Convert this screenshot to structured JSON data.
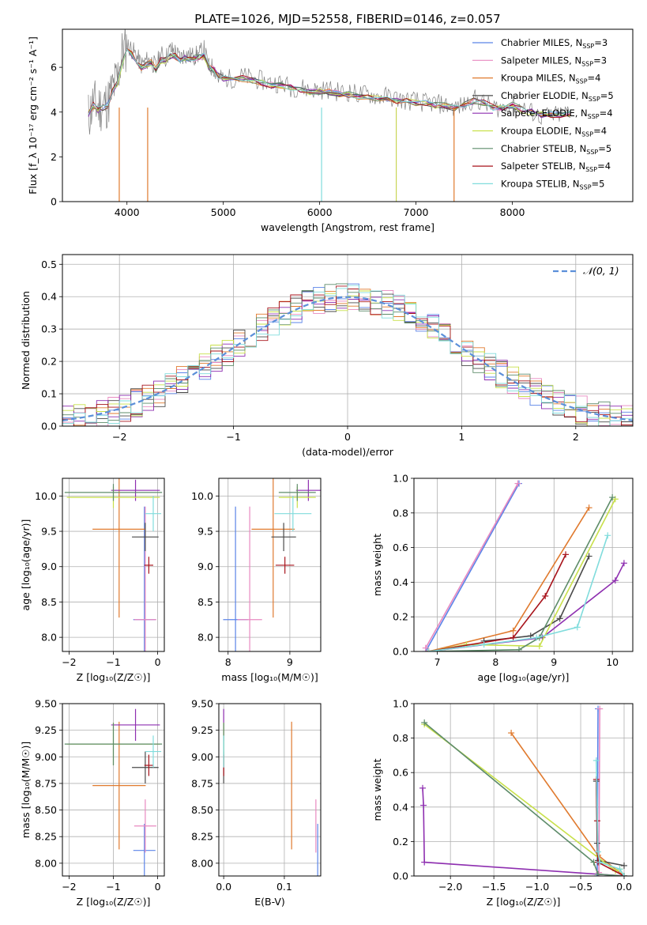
{
  "figure_title": "PLATE=1026, MJD=52558, FIBERID=0146, z=0.057",
  "chart_data": [
    {
      "id": "spectrum",
      "type": "line",
      "title": "PLATE=1026, MJD=52558, FIBERID=0146, z=0.057",
      "xlabel": "wavelength [Angstrom, rest frame]",
      "ylabel": "Flux [f_λ 10⁻¹⁷ erg cm⁻² s⁻¹ A⁻¹]",
      "xlim": [
        3330,
        9250
      ],
      "ylim": [
        0,
        7.7
      ],
      "xticks": [
        4000,
        5000,
        6000,
        7000,
        8000
      ],
      "yticks": [
        0,
        2,
        4,
        6
      ],
      "grid": false,
      "legend": "right",
      "observed": {
        "color": "#808080",
        "x": [
          3600,
          3650,
          3700,
          3750,
          3800,
          3850,
          3900,
          3950,
          4000,
          4050,
          4100,
          4150,
          4200,
          4250,
          4300,
          4350,
          4400,
          4450,
          4500,
          4550,
          4600,
          4650,
          4700,
          4750,
          4800,
          4850,
          4900,
          4950,
          5000,
          5100,
          5200,
          5300,
          5400,
          5500,
          5600,
          5700,
          5800,
          5900,
          6000,
          6100,
          6200,
          6300,
          6400,
          6500,
          6600,
          6700,
          6800,
          6900,
          7000,
          7100,
          7200,
          7300,
          7400,
          7500,
          7600,
          7700,
          7800,
          7900,
          8000,
          8100,
          8200,
          8300,
          8400,
          8500,
          8600
        ],
        "y": [
          3.8,
          4.4,
          4.2,
          4.3,
          4.4,
          5.0,
          5.5,
          6.6,
          7.0,
          6.8,
          6.5,
          6.1,
          6.3,
          6.3,
          6.0,
          6.6,
          6.4,
          6.8,
          6.7,
          6.4,
          6.6,
          6.5,
          6.5,
          6.6,
          6.8,
          6.0,
          6.0,
          5.5,
          5.5,
          5.5,
          5.6,
          5.5,
          5.4,
          5.3,
          5.3,
          5.1,
          5.1,
          5.0,
          5.0,
          5.0,
          4.9,
          4.9,
          4.8,
          4.8,
          4.7,
          4.7,
          4.6,
          4.5,
          4.5,
          4.4,
          4.4,
          4.3,
          4.2,
          4.3,
          4.6,
          4.4,
          4.2,
          4.2,
          4.4,
          4.2,
          4.0,
          3.8,
          3.8,
          3.9,
          4.0
        ]
      },
      "model_x": [
        3600,
        3650,
        3700,
        3750,
        3800,
        3850,
        3900,
        3950,
        4000,
        4050,
        4100,
        4150,
        4200,
        4250,
        4300,
        4350,
        4400,
        4450,
        4500,
        4550,
        4600,
        4650,
        4700,
        4750,
        4800,
        4850,
        4900,
        4950,
        5000,
        5100,
        5200,
        5300,
        5400,
        5500,
        5600,
        5700,
        5800,
        5900,
        6000,
        6100,
        6200,
        6300,
        6400,
        6500,
        6600,
        6700,
        6800,
        6900,
        7000,
        7100,
        7200,
        7300,
        7400,
        7500,
        7600,
        7700,
        7800,
        7900,
        8000,
        8100,
        8200,
        8300,
        8400,
        8500,
        8600
      ],
      "model_y": [
        3.9,
        4.3,
        4.1,
        4.2,
        4.3,
        4.9,
        5.3,
        6.2,
        6.7,
        6.6,
        6.3,
        6.0,
        6.1,
        6.2,
        5.9,
        6.3,
        6.3,
        6.5,
        6.5,
        6.3,
        6.4,
        6.4,
        6.4,
        6.5,
        6.5,
        6.0,
        5.9,
        5.6,
        5.5,
        5.4,
        5.5,
        5.4,
        5.3,
        5.2,
        5.2,
        5.1,
        5.0,
        4.9,
        4.9,
        4.9,
        4.8,
        4.8,
        4.7,
        4.7,
        4.6,
        4.6,
        4.5,
        4.5,
        4.4,
        4.4,
        4.3,
        4.3,
        4.2,
        4.3,
        4.5,
        4.4,
        4.2,
        4.2,
        4.3,
        4.1,
        4.0,
        3.9,
        3.9,
        3.9,
        3.9
      ],
      "dropouts": [
        {
          "x": 3920,
          "color": "#e07a2e"
        },
        {
          "x": 4215,
          "color": "#e07a2e"
        },
        {
          "x": 6020,
          "color": "#80dcdc"
        },
        {
          "x": 6795,
          "color": "#c8d455"
        },
        {
          "x": 7395,
          "color": "#e07a2e"
        }
      ]
    },
    {
      "id": "residuals",
      "type": "step",
      "xlabel": "(data-model)/error",
      "ylabel": "Normed distribution",
      "xlim": [
        -2.5,
        2.5
      ],
      "ylim": [
        0,
        0.53
      ],
      "xticks": [
        -2,
        -1,
        0,
        1,
        2
      ],
      "yticks": [
        0.0,
        0.1,
        0.2,
        0.3,
        0.4,
        0.5
      ],
      "grid": true,
      "legend": "top-right",
      "gaussian_label": "𝒩(0, 1)",
      "bins_start": -2.5,
      "bin_width": 0.1
    },
    {
      "id": "age_vs_Z",
      "type": "scatter",
      "xlabel": "Z [log₁₀(Z/Z☉)]",
      "ylabel": "age  [log₁₀(age/yr)]",
      "xlim": [
        -2.15,
        0.15
      ],
      "ylim": [
        7.8,
        10.25
      ],
      "xticks": [
        -2,
        -1,
        0
      ],
      "yticks": [
        8.0,
        8.5,
        9.0,
        9.5,
        10.0
      ],
      "grid": true
    },
    {
      "id": "age_vs_mass",
      "type": "scatter",
      "xlabel": "mass [log₁₀(M/M☉)]",
      "ylabel": "",
      "xlim": [
        7.85,
        9.5
      ],
      "ylim": [
        7.8,
        10.25
      ],
      "xticks": [
        8,
        9
      ],
      "yticks": [
        8.0,
        8.5,
        9.0,
        9.5,
        10.0
      ],
      "grid": true
    },
    {
      "id": "weight_vs_age",
      "type": "line",
      "xlabel": "age  [log₁₀(age/yr)]",
      "ylabel": "mass weight",
      "xlim": [
        6.6,
        10.35
      ],
      "ylim": [
        0,
        1.0
      ],
      "xticks": [
        7,
        8,
        9,
        10
      ],
      "yticks": [
        0.0,
        0.2,
        0.4,
        0.6,
        0.8,
        1.0
      ],
      "grid": true
    },
    {
      "id": "mass_vs_Z",
      "type": "scatter",
      "xlabel": "Z [log₁₀(Z/Z☉)]",
      "ylabel": "mass [log₁₀(M/M☉)]",
      "xlim": [
        -2.15,
        0.15
      ],
      "ylim": [
        7.88,
        9.5
      ],
      "xticks": [
        -2,
        -1,
        0
      ],
      "yticks": [
        8.0,
        8.25,
        8.5,
        8.75,
        9.0,
        9.25,
        9.5
      ],
      "grid": true
    },
    {
      "id": "mass_vs_ebv",
      "type": "scatter",
      "xlabel": "E(B-V)",
      "ylabel": "",
      "xlim": [
        -0.008,
        0.16
      ],
      "ylim": [
        7.88,
        9.5
      ],
      "xticks": [
        0.0,
        0.1
      ],
      "yticks": [
        8.0,
        8.25,
        8.5,
        8.75,
        9.0,
        9.25,
        9.5
      ],
      "grid": true
    },
    {
      "id": "weight_vs_Z",
      "type": "line",
      "xlabel": "Z [log₁₀(Z/Z☉)]",
      "ylabel": "mass weight",
      "xlim": [
        -2.42,
        0.1
      ],
      "ylim": [
        0,
        1.0
      ],
      "xticks": [
        -2.0,
        -1.5,
        -1.0,
        -0.5,
        0.0
      ],
      "yticks": [
        0.0,
        0.2,
        0.4,
        0.6,
        0.8,
        1.0
      ],
      "grid": true
    }
  ],
  "models": [
    {
      "name": "Chabrier MILES",
      "legend": "Chabrier MILES, N_SSP=3",
      "color": "#5b84e8",
      "residual_seed": 1,
      "age": 8.25,
      "age_err": 1.6,
      "Z": -0.3,
      "Z_err": 0.25,
      "mass": 8.12,
      "mass_err": 0.25,
      "mass_x_err": 0.2,
      "ebv": 0.155,
      "sfh_age": [
        6.8,
        8.4
      ],
      "sfh_weight": [
        0.0,
        0.97
      ],
      "mz_Z": [
        -0.31,
        -0.3
      ],
      "mz_w": [
        0.0,
        0.97
      ]
    },
    {
      "name": "Salpeter MILES",
      "legend": "Salpeter MILES, N_SSP=3",
      "color": "#e889c0",
      "residual_seed": 2,
      "age": 8.25,
      "age_err": 1.6,
      "Z": -0.28,
      "Z_err": 0.25,
      "mass": 8.35,
      "mass_err": 0.25,
      "mass_x_err": 0.2,
      "ebv": 0.152,
      "sfh_age": [
        6.8,
        8.38
      ],
      "sfh_weight": [
        0.02,
        0.97
      ],
      "mz_Z": [
        -0.29,
        -0.28
      ],
      "mz_w": [
        0.02,
        0.97
      ]
    },
    {
      "name": "Kroupa MILES",
      "legend": "Kroupa MILES, N_SSP=4",
      "color": "#e07a2e",
      "residual_seed": 3,
      "age": 9.53,
      "age_err": 1.25,
      "Z": -0.87,
      "Z_err": 0.6,
      "mass": 8.73,
      "mass_err": 0.6,
      "mass_x_err": 0.35,
      "ebv": 0.112,
      "sfh_age": [
        6.85,
        8.3,
        9.6
      ],
      "sfh_weight": [
        0.0,
        0.12,
        0.83
      ],
      "mz_Z": [
        0.0,
        -0.3,
        -1.3
      ],
      "mz_w": [
        0.0,
        0.12,
        0.83
      ]
    },
    {
      "name": "Chabrier ELODIE",
      "legend": "Chabrier ELODIE, N_SSP=5",
      "color": "#4a4a4a",
      "residual_seed": 4,
      "age": 9.42,
      "age_err": 0.2,
      "Z": -0.28,
      "Z_err": 0.3,
      "mass": 8.9,
      "mass_err": 0.15,
      "mass_x_err": 0.2,
      "ebv": 0.0,
      "sfh_age": [
        7.8,
        8.6,
        9.1,
        9.6
      ],
      "sfh_weight": [
        0.06,
        0.09,
        0.19,
        0.55
      ],
      "mz_Z": [
        0.0,
        -0.3,
        -0.31,
        -0.32
      ],
      "mz_w": [
        0.06,
        0.09,
        0.19,
        0.55
      ]
    },
    {
      "name": "Salpeter ELODIE",
      "legend": "Salpeter ELODIE, N_SSP=4",
      "color": "#8e2fb0",
      "residual_seed": 5,
      "age": 10.08,
      "age_err": 0.15,
      "Z": -0.5,
      "Z_err": 0.55,
      "mass": 9.3,
      "mass_err": 0.15,
      "mass_x_err": 0.2,
      "ebv": 0.0,
      "sfh_age": [
        6.85,
        8.8,
        10.05,
        10.2
      ],
      "sfh_weight": [
        0.0,
        0.08,
        0.41,
        0.51
      ],
      "mz_Z": [
        0.0,
        -2.3,
        -2.31,
        -2.32
      ],
      "mz_w": [
        0.0,
        0.08,
        0.41,
        0.51
      ]
    },
    {
      "name": "Kroupa ELODIE",
      "legend": "Kroupa ELODIE, N_SSP=4",
      "color": "#c8e04a",
      "residual_seed": 6,
      "age": 9.98,
      "age_err": 0.15,
      "Z": -1.0,
      "Z_err": 1.05,
      "mass": 9.12,
      "mass_err": 0.2,
      "mass_x_err": 0.3,
      "ebv": 0.0,
      "sfh_age": [
        6.85,
        7.5,
        8.75,
        10.05
      ],
      "sfh_weight": [
        0.0,
        0.04,
        0.03,
        0.88
      ],
      "mz_Z": [
        0.0,
        -0.05,
        -0.1,
        -2.3
      ],
      "mz_w": [
        0.0,
        0.04,
        0.03,
        0.88
      ]
    },
    {
      "name": "Chabrier STELIB",
      "legend": "Chabrier STELIB, N_SSP=5",
      "color": "#5e8c6a",
      "residual_seed": 7,
      "age": 10.05,
      "age_err": 0.12,
      "Z": -1.0,
      "Z_err": 1.1,
      "mass": 9.12,
      "mass_err": 0.2,
      "mass_x_err": 0.3,
      "ebv": 0.0,
      "sfh_age": [
        6.85,
        8.4,
        8.75,
        10.0
      ],
      "sfh_weight": [
        0.0,
        0.01,
        0.08,
        0.89
      ],
      "mz_Z": [
        0.0,
        -0.3,
        -0.35,
        -2.3
      ],
      "mz_w": [
        0.0,
        0.01,
        0.08,
        0.89
      ]
    },
    {
      "name": "Salpeter STELIB",
      "legend": "Salpeter STELIB, N_SSP=4",
      "color": "#a8141c",
      "residual_seed": 8,
      "age": 9.02,
      "age_err": 0.12,
      "Z": -0.2,
      "Z_err": 0.1,
      "mass": 8.92,
      "mass_err": 0.1,
      "mass_x_err": 0.15,
      "ebv": 0.0,
      "sfh_age": [
        6.85,
        8.3,
        8.85,
        9.2
      ],
      "sfh_weight": [
        0.0,
        0.08,
        0.32,
        0.56
      ],
      "mz_Z": [
        0.0,
        -0.3,
        -0.31,
        -0.32
      ],
      "mz_w": [
        0.0,
        0.08,
        0.32,
        0.56
      ]
    },
    {
      "name": "Kroupa STELIB",
      "legend": "Kroupa STELIB, N_SSP=5",
      "color": "#80dcdc",
      "residual_seed": 9,
      "age": 9.75,
      "age_err": 0.25,
      "Z": -0.1,
      "Z_err": 0.18,
      "mass": 9.05,
      "mass_err": 0.15,
      "mass_x_err": 0.3,
      "ebv": 0.0,
      "sfh_age": [
        6.85,
        7.8,
        8.7,
        9.4,
        9.92
      ],
      "sfh_weight": [
        0.0,
        0.04,
        0.08,
        0.14,
        0.67
      ],
      "mz_Z": [
        0.0,
        -0.05,
        -0.28,
        -0.3,
        -0.32
      ],
      "mz_w": [
        0.0,
        0.04,
        0.08,
        0.14,
        0.67
      ]
    }
  ]
}
